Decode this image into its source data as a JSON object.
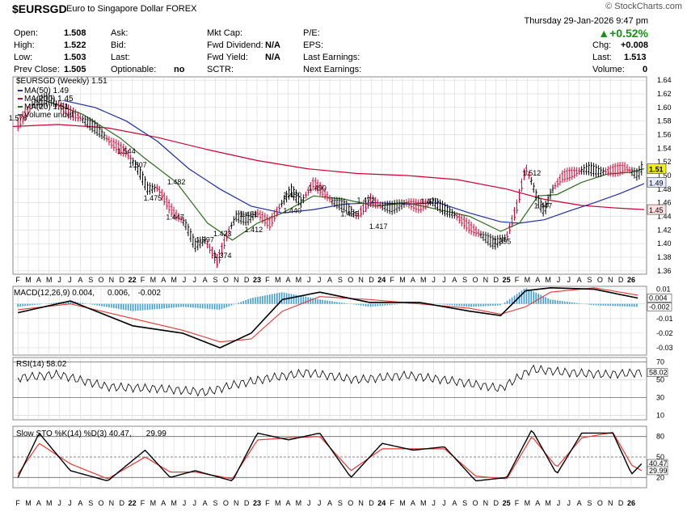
{
  "header": {
    "symbol": "$EURSGD",
    "name": "Euro to Singapore Dollar",
    "exchange": "FOREX",
    "brand": "© StockCharts.com",
    "date_line": "Thursday   29-Jan-2026   9:47 pm",
    "change_pct": "+0.52%",
    "up_arrow": "▲",
    "fields": [
      {
        "label": "Open:",
        "value": "1.508"
      },
      {
        "label": "High:",
        "value": "1.522"
      },
      {
        "label": "Low:",
        "value": "1.503"
      },
      {
        "label": "Prev Close:",
        "value": "1.505"
      },
      {
        "label": "Ask:",
        "value": ""
      },
      {
        "label": "Bid:",
        "value": ""
      },
      {
        "label": "Last:",
        "value": ""
      },
      {
        "label": "Optionable:",
        "value": "no"
      },
      {
        "label": "Mkt Cap:",
        "value": ""
      },
      {
        "label": "Fwd Dividend:",
        "value": "N/A"
      },
      {
        "label": "Fwd Yield:",
        "value": "N/A"
      },
      {
        "label": "SCTR:",
        "value": ""
      },
      {
        "label": "P/E:",
        "value": ""
      },
      {
        "label": "EPS:",
        "value": ""
      },
      {
        "label": "Last Earnings:",
        "value": ""
      },
      {
        "label": "Next Earnings:",
        "value": ""
      },
      {
        "label": "Chg:",
        "value": "+0.008"
      },
      {
        "label": "Last:",
        "value": "1.513"
      },
      {
        "label": "Volume:",
        "value": "0"
      }
    ]
  },
  "colors": {
    "up": "#000000",
    "down": "#cc0033",
    "ma50": "#1f2f9f",
    "ma200": "#cc0033",
    "ma20": "#2e6b1e",
    "hist": "#3f9fd0",
    "macd_sig": "#e53935",
    "grid": "#d8d8d8",
    "badge_price": "#f0f000",
    "badge_ma200": "#ffe0e0",
    "badge_ma": "#e6ebff"
  },
  "chart_data": [
    {
      "type": "line",
      "title": "$EURSGD (Weekly) 1.51",
      "legend": [
        {
          "label": "MA(50) 1.49",
          "color": "#1f2f9f"
        },
        {
          "label": "MA(200) 1.45",
          "color": "#cc0033"
        },
        {
          "label": "MA(20) 1.51",
          "color": "#2e6b1e"
        },
        {
          "label": "Volume undef",
          "color": "#555555"
        }
      ],
      "y_ticks": [
        "1.64",
        "1.62",
        "1.60",
        "1.58",
        "1.56",
        "1.54",
        "1.52",
        "1.50",
        "1.48",
        "1.46",
        "1.44",
        "1.42",
        "1.40",
        "1.38",
        "1.36"
      ],
      "ylim": [
        1.355,
        1.645
      ],
      "x_ticks": [
        "F",
        "M",
        "A",
        "M",
        "J",
        "J",
        "A",
        "S",
        "O",
        "N",
        "D",
        "22",
        "F",
        "M",
        "A",
        "M",
        "J",
        "J",
        "A",
        "S",
        "O",
        "N",
        "D",
        "23",
        "F",
        "M",
        "A",
        "M",
        "J",
        "J",
        "A",
        "S",
        "O",
        "N",
        "D",
        "24",
        "F",
        "M",
        "A",
        "M",
        "J",
        "J",
        "A",
        "S",
        "O",
        "N",
        "D",
        "25",
        "F",
        "M",
        "A",
        "M",
        "J",
        "J",
        "A",
        "S",
        "O",
        "N",
        "D",
        "26"
      ],
      "xlim": [
        2021.04,
        2026.12
      ],
      "price_series": {
        "name": "$EURSGD",
        "x": [
          2021.08,
          2021.2,
          2021.33,
          2021.45,
          2021.58,
          2021.7,
          2021.83,
          2021.95,
          2022.05,
          2022.12,
          2022.2,
          2022.32,
          2022.42,
          2022.5,
          2022.58,
          2022.68,
          2022.76,
          2022.83,
          2022.92,
          2023.0,
          2023.1,
          2023.2,
          2023.27,
          2023.35,
          2023.45,
          2023.52,
          2023.6,
          2023.7,
          2023.8,
          2023.9,
          2024.0,
          2024.08,
          2024.2,
          2024.3,
          2024.4,
          2024.5,
          2024.6,
          2024.7,
          2024.8,
          2024.9,
          2025.0,
          2025.08,
          2025.15,
          2025.2,
          2025.25,
          2025.3,
          2025.36,
          2025.45,
          2025.55,
          2025.65,
          2025.75,
          2025.85,
          2025.95,
          2026.05,
          2026.08
        ],
        "values": [
          1.576,
          1.605,
          1.612,
          1.598,
          1.585,
          1.57,
          1.548,
          1.535,
          1.507,
          1.48,
          1.482,
          1.447,
          1.43,
          1.397,
          1.405,
          1.374,
          1.415,
          1.44,
          1.435,
          1.445,
          1.43,
          1.46,
          1.478,
          1.46,
          1.49,
          1.478,
          1.462,
          1.455,
          1.44,
          1.465,
          1.455,
          1.452,
          1.46,
          1.455,
          1.462,
          1.45,
          1.44,
          1.425,
          1.412,
          1.4,
          1.41,
          1.455,
          1.512,
          1.49,
          1.462,
          1.447,
          1.478,
          1.5,
          1.505,
          1.51,
          1.505,
          1.508,
          1.512,
          1.5,
          1.51
        ]
      },
      "ma50": {
        "name": "MA(50)",
        "x": [
          2021.45,
          2021.7,
          2021.95,
          2022.2,
          2022.45,
          2022.7,
          2022.95,
          2023.2,
          2023.45,
          2023.7,
          2023.95,
          2024.2,
          2024.45,
          2024.7,
          2024.95,
          2025.1,
          2025.3,
          2025.5,
          2025.7,
          2025.9,
          2026.1
        ],
        "values": [
          1.61,
          1.6,
          1.58,
          1.55,
          1.51,
          1.48,
          1.455,
          1.445,
          1.45,
          1.458,
          1.46,
          1.458,
          1.46,
          1.445,
          1.432,
          1.43,
          1.435,
          1.448,
          1.46,
          1.473,
          1.488
        ]
      },
      "ma200": {
        "name": "MA(200)",
        "x": [
          2021.04,
          2021.4,
          2021.8,
          2022.2,
          2022.6,
          2023.0,
          2023.4,
          2023.8,
          2024.2,
          2024.6,
          2025.0,
          2025.3,
          2025.6,
          2025.9,
          2026.1
        ],
        "values": [
          1.572,
          1.575,
          1.57,
          1.556,
          1.538,
          1.522,
          1.51,
          1.503,
          1.5,
          1.494,
          1.48,
          1.465,
          1.456,
          1.452,
          1.45
        ]
      },
      "ma20": {
        "name": "MA(20)",
        "x": [
          2021.3,
          2021.6,
          2021.9,
          2022.1,
          2022.35,
          2022.6,
          2022.8,
          2023.0,
          2023.2,
          2023.45,
          2023.7,
          2023.95,
          2024.2,
          2024.45,
          2024.7,
          2024.95,
          2025.1,
          2025.25,
          2025.4,
          2025.6,
          2025.8,
          2026.0,
          2026.1
        ],
        "values": [
          1.61,
          1.59,
          1.555,
          1.525,
          1.49,
          1.43,
          1.405,
          1.43,
          1.445,
          1.47,
          1.465,
          1.455,
          1.46,
          1.45,
          1.44,
          1.418,
          1.43,
          1.47,
          1.472,
          1.49,
          1.502,
          1.505,
          1.51
        ]
      },
      "price_labels": [
        {
          "x": 2021.08,
          "y": 1.576,
          "text": "1.576"
        },
        {
          "x": 2021.95,
          "y": 1.544,
          "text": "1.544"
        },
        {
          "x": 2022.04,
          "y": 1.507,
          "text": "1.507"
        },
        {
          "x": 2022.16,
          "y": 1.475,
          "text": "1.475"
        },
        {
          "x": 2022.35,
          "y": 1.482,
          "text": "1.482"
        },
        {
          "x": 2022.34,
          "y": 1.447,
          "text": "1.447"
        },
        {
          "x": 2022.58,
          "y": 1.397,
          "text": "1.397"
        },
        {
          "x": 2022.72,
          "y": 1.423,
          "text": "1.423"
        },
        {
          "x": 2022.72,
          "y": 1.374,
          "text": "1.374"
        },
        {
          "x": 2022.93,
          "y": 1.451,
          "text": "1.451"
        },
        {
          "x": 2022.97,
          "y": 1.412,
          "text": "1.412"
        },
        {
          "x": 2023.28,
          "y": 1.48,
          "text": "1.480"
        },
        {
          "x": 2023.28,
          "y": 1.44,
          "text": "1.440"
        },
        {
          "x": 2023.48,
          "y": 1.49,
          "text": "1.490"
        },
        {
          "x": 2023.74,
          "y": 1.435,
          "text": "1.435"
        },
        {
          "x": 2023.87,
          "y": 1.472,
          "text": "1.472"
        },
        {
          "x": 2023.97,
          "y": 1.417,
          "text": "1.417"
        },
        {
          "x": 2024.38,
          "y": 1.47,
          "text": "1.470"
        },
        {
          "x": 2024.96,
          "y": 1.395,
          "text": "1.395"
        },
        {
          "x": 2025.2,
          "y": 1.512,
          "text": "1.512"
        },
        {
          "x": 2025.29,
          "y": 1.447,
          "text": "1.447"
        }
      ],
      "badges": [
        {
          "y": 1.51,
          "text": "1.51"
        },
        {
          "y": 1.49,
          "text": "1.49"
        },
        {
          "y": 1.45,
          "text": "1.45"
        }
      ]
    },
    {
      "type": "line",
      "title": "MACD(12,26,9) 0.004, 0.006, -0.002",
      "legend": [
        {
          "label": "MACD(12,26,9) 0.004,",
          "color": "#000000"
        },
        {
          "label": "0.006,",
          "color": "#e53935"
        },
        {
          "label": "-0.002",
          "color": "#3f9fd0"
        }
      ],
      "y_ticks": [
        "0.01",
        "0.00",
        "-0.01",
        "-0.02",
        "-0.03"
      ],
      "ylim": [
        -0.035,
        0.012
      ],
      "macd": {
        "x": [
          2021.08,
          2021.5,
          2022.0,
          2022.4,
          2022.7,
          2022.95,
          2023.2,
          2023.5,
          2023.9,
          2024.3,
          2024.7,
          2024.95,
          2025.15,
          2025.35,
          2025.7,
          2026.05
        ],
        "values": [
          -0.006,
          0.002,
          -0.015,
          -0.02,
          -0.03,
          -0.02,
          0.003,
          0.008,
          0.001,
          0.001,
          -0.005,
          -0.008,
          0.009,
          0.011,
          0.01,
          0.004
        ]
      },
      "signal": {
        "x": [
          2021.08,
          2021.5,
          2022.0,
          2022.4,
          2022.7,
          2022.95,
          2023.2,
          2023.5,
          2023.9,
          2024.3,
          2024.7,
          2024.95,
          2025.15,
          2025.35,
          2025.7,
          2026.05
        ],
        "values": [
          -0.004,
          0.0,
          -0.01,
          -0.018,
          -0.026,
          -0.024,
          -0.005,
          0.005,
          0.003,
          0.0,
          -0.003,
          -0.007,
          -0.002,
          0.008,
          0.011,
          0.006
        ]
      },
      "badges": [
        {
          "y": 0.004,
          "text": "0.004"
        },
        {
          "y": -0.002,
          "text": "-0.002"
        }
      ]
    },
    {
      "type": "line",
      "title": "RSI(14) 58.02",
      "y_ticks": [
        "70",
        "50",
        "30",
        "10"
      ],
      "ylim": [
        5,
        75
      ],
      "series": [
        {
          "name": "RSI(14)",
          "x": [
            2021.08,
            2021.4,
            2021.8,
            2022.2,
            2022.6,
            2022.8,
            2023.1,
            2023.4,
            2023.8,
            2024.2,
            2024.6,
            2024.95,
            2025.2,
            2025.5,
            2025.8,
            2026.08
          ],
          "values": [
            52,
            56,
            42,
            40,
            36,
            44,
            52,
            58,
            50,
            55,
            48,
            40,
            62,
            58,
            56,
            58
          ]
        }
      ],
      "badges": [
        {
          "y": 58.02,
          "text": "58.02"
        }
      ]
    },
    {
      "type": "line",
      "title": "Slow STO %K(14) %D(3) 40.47, 29.99",
      "legend": [
        {
          "label": "Slow STO %K(14) %D(3) 40.47,",
          "color": "#000000"
        },
        {
          "label": "29.99",
          "color": "#e53935"
        }
      ],
      "y_ticks": [
        "80",
        "50",
        "20"
      ],
      "ylim": [
        5,
        95
      ],
      "k": {
        "x": [
          2021.08,
          2021.25,
          2021.5,
          2021.8,
          2022.1,
          2022.3,
          2022.5,
          2022.8,
          2023.0,
          2023.25,
          2023.5,
          2023.75,
          2024.0,
          2024.25,
          2024.5,
          2024.75,
          2025.0,
          2025.2,
          2025.4,
          2025.6,
          2025.85,
          2026.0,
          2026.08
        ],
        "values": [
          20,
          85,
          30,
          15,
          60,
          20,
          30,
          15,
          85,
          75,
          85,
          20,
          70,
          60,
          65,
          15,
          20,
          90,
          25,
          85,
          85,
          25,
          40
        ]
      },
      "d": {
        "x": [
          2021.08,
          2021.25,
          2021.5,
          2021.8,
          2022.1,
          2022.3,
          2022.5,
          2022.8,
          2023.0,
          2023.25,
          2023.5,
          2023.75,
          2024.0,
          2024.25,
          2024.5,
          2024.75,
          2025.0,
          2025.2,
          2025.4,
          2025.6,
          2025.85,
          2026.0,
          2026.08
        ],
        "values": [
          25,
          70,
          40,
          18,
          50,
          28,
          28,
          18,
          75,
          78,
          80,
          30,
          62,
          62,
          62,
          22,
          18,
          80,
          35,
          78,
          86,
          38,
          30
        ]
      },
      "badges": [
        {
          "y": 40.47,
          "text": "40.47"
        },
        {
          "y": 29.99,
          "text": "29.99"
        }
      ]
    }
  ]
}
